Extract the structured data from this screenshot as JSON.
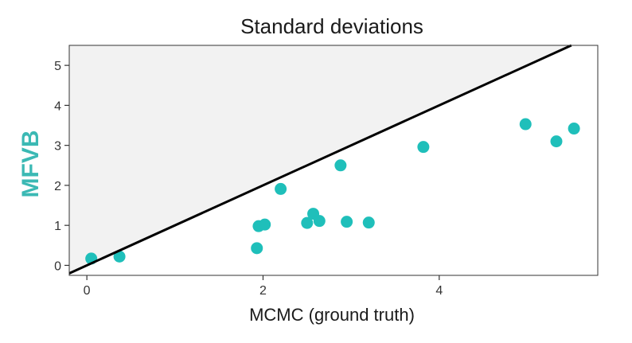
{
  "chart_data": {
    "type": "scatter",
    "title": "Standard deviations",
    "xlabel": "MCMC (ground truth)",
    "ylabel": "MFVB",
    "xlim": [
      -0.2,
      5.8
    ],
    "ylim": [
      -0.25,
      5.5
    ],
    "x_ticks": [
      0,
      2,
      4
    ],
    "y_ticks": [
      0,
      1,
      2,
      3,
      4,
      5
    ],
    "x_tick_labels": [
      "0",
      "2",
      "4"
    ],
    "y_tick_labels": [
      "0",
      "1",
      "2",
      "3",
      "4",
      "5"
    ],
    "grid": false,
    "reference_line": "y = x",
    "points": [
      {
        "x": 0.05,
        "y": 0.17
      },
      {
        "x": 0.37,
        "y": 0.22
      },
      {
        "x": 1.93,
        "y": 0.43
      },
      {
        "x": 1.95,
        "y": 0.98
      },
      {
        "x": 2.02,
        "y": 1.02
      },
      {
        "x": 2.2,
        "y": 1.91
      },
      {
        "x": 2.5,
        "y": 1.06
      },
      {
        "x": 2.57,
        "y": 1.29
      },
      {
        "x": 2.64,
        "y": 1.11
      },
      {
        "x": 2.88,
        "y": 2.5
      },
      {
        "x": 2.95,
        "y": 1.09
      },
      {
        "x": 3.2,
        "y": 1.07
      },
      {
        "x": 3.82,
        "y": 2.96
      },
      {
        "x": 4.98,
        "y": 3.53
      },
      {
        "x": 5.33,
        "y": 3.1
      },
      {
        "x": 5.53,
        "y": 3.42
      }
    ],
    "colors": {
      "points": "#1fbfba",
      "ylabel": "#3bb9b4",
      "upper_region": "#f2f2f2",
      "line": "#000000",
      "axis": "#333333"
    }
  }
}
